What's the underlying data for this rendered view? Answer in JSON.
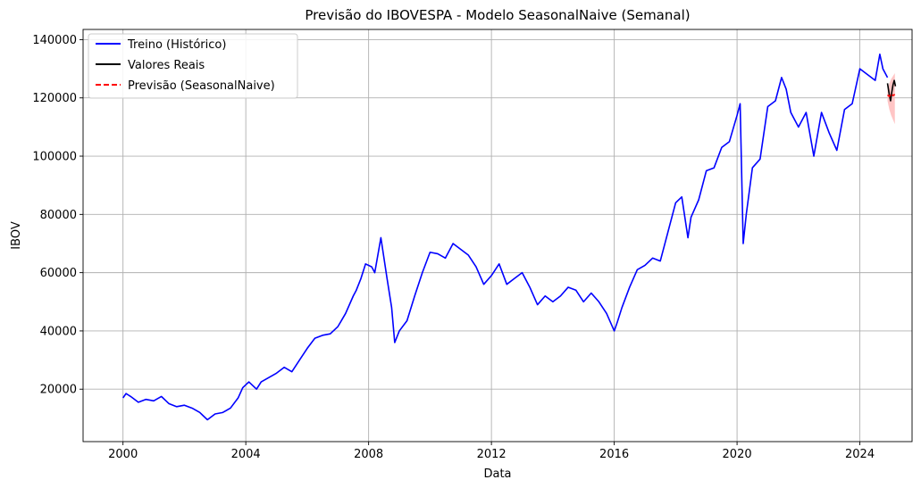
{
  "chart_data": {
    "type": "line",
    "title": "Previsão do IBOVESPA - Modelo SeasonalNaive (Semanal)",
    "xlabel": "Data",
    "ylabel": "IBOV",
    "xlim": [
      1998.7,
      2025.7
    ],
    "ylim": [
      2000,
      143500
    ],
    "x_ticks": [
      2000,
      2004,
      2008,
      2012,
      2016,
      2020,
      2024
    ],
    "x_tick_labels": [
      "2000",
      "2004",
      "2008",
      "2012",
      "2016",
      "2020",
      "2024"
    ],
    "y_ticks": [
      20000,
      40000,
      60000,
      80000,
      100000,
      120000,
      140000
    ],
    "y_tick_labels": [
      "20000",
      "40000",
      "60000",
      "80000",
      "100000",
      "120000",
      "140000"
    ],
    "grid": true,
    "legend_position": "top-left",
    "series": [
      {
        "name": "Treino (Histórico)",
        "color": "#0000ff",
        "style": "solid",
        "x": [
          2000.0,
          2000.1,
          2000.25,
          2000.5,
          2000.75,
          2001.0,
          2001.25,
          2001.5,
          2001.75,
          2002.0,
          2002.25,
          2002.5,
          2002.6,
          2002.75,
          2003.0,
          2003.25,
          2003.5,
          2003.75,
          2003.9,
          2004.1,
          2004.35,
          2004.5,
          2004.75,
          2005.0,
          2005.25,
          2005.5,
          2005.75,
          2006.0,
          2006.25,
          2006.5,
          2006.75,
          2007.0,
          2007.25,
          2007.5,
          2007.6,
          2007.75,
          2007.9,
          2008.1,
          2008.2,
          2008.4,
          2008.6,
          2008.75,
          2008.85,
          2009.0,
          2009.25,
          2009.5,
          2009.75,
          2010.0,
          2010.25,
          2010.5,
          2010.75,
          2011.0,
          2011.25,
          2011.5,
          2011.75,
          2012.0,
          2012.25,
          2012.5,
          2012.75,
          2013.0,
          2013.25,
          2013.5,
          2013.75,
          2014.0,
          2014.25,
          2014.5,
          2014.75,
          2015.0,
          2015.25,
          2015.5,
          2015.75,
          2016.0,
          2016.1,
          2016.25,
          2016.5,
          2016.75,
          2017.0,
          2017.25,
          2017.5,
          2017.75,
          2018.0,
          2018.2,
          2018.4,
          2018.5,
          2018.75,
          2019.0,
          2019.25,
          2019.5,
          2019.75,
          2020.0,
          2020.1,
          2020.2,
          2020.3,
          2020.5,
          2020.75,
          2021.0,
          2021.25,
          2021.45,
          2021.6,
          2021.75,
          2022.0,
          2022.25,
          2022.5,
          2022.75,
          2023.0,
          2023.25,
          2023.5,
          2023.75,
          2024.0,
          2024.25,
          2024.5,
          2024.65,
          2024.75,
          2024.9
        ],
        "y": [
          17000,
          18500,
          17500,
          15500,
          16500,
          16000,
          17500,
          15000,
          14000,
          14500,
          13500,
          12000,
          11000,
          9500,
          11500,
          12000,
          13500,
          17000,
          20500,
          22500,
          20000,
          22500,
          24000,
          25500,
          27500,
          26000,
          30000,
          34000,
          37500,
          38500,
          39000,
          41500,
          46000,
          52000,
          54000,
          58000,
          63000,
          62000,
          60000,
          72000,
          58000,
          48000,
          36000,
          40000,
          43500,
          52000,
          60000,
          67000,
          66500,
          65000,
          70000,
          68000,
          66000,
          62000,
          56000,
          59000,
          63000,
          56000,
          58000,
          60000,
          55000,
          49000,
          52000,
          50000,
          52000,
          55000,
          54000,
          50000,
          53000,
          50000,
          46000,
          40000,
          43000,
          48000,
          55000,
          61000,
          62500,
          65000,
          64000,
          74000,
          84000,
          86000,
          72000,
          79000,
          85000,
          95000,
          96000,
          103000,
          105000,
          114000,
          118000,
          70000,
          80000,
          96000,
          99000,
          117000,
          119000,
          127000,
          123000,
          115000,
          110000,
          115000,
          100000,
          115000,
          108000,
          102000,
          116000,
          118000,
          130000,
          128000,
          126000,
          135000,
          130000,
          127000
        ]
      },
      {
        "name": "Valores Reais",
        "color": "#000000",
        "style": "solid",
        "x": [
          2024.9,
          2024.96,
          2025.0,
          2025.04,
          2025.08,
          2025.12,
          2025.16
        ],
        "y": [
          125000,
          121000,
          119000,
          122000,
          124500,
          126000,
          124000
        ]
      },
      {
        "name": "Previsão (SeasonalNaive)",
        "color": "#ff0000",
        "style": "dashed",
        "x": [
          2024.9,
          2024.96,
          2025.02,
          2025.08,
          2025.14
        ],
        "y": [
          121000,
          120500,
          121500,
          120800,
          121200
        ]
      }
    ],
    "confidence_band": {
      "color": "#ffb6b6",
      "x": [
        2024.9,
        2024.96,
        2025.02,
        2025.08,
        2025.14
      ],
      "lower": [
        119000,
        116000,
        114000,
        112500,
        111000
      ],
      "upper": [
        123000,
        125000,
        126500,
        127500,
        128500
      ]
    }
  }
}
